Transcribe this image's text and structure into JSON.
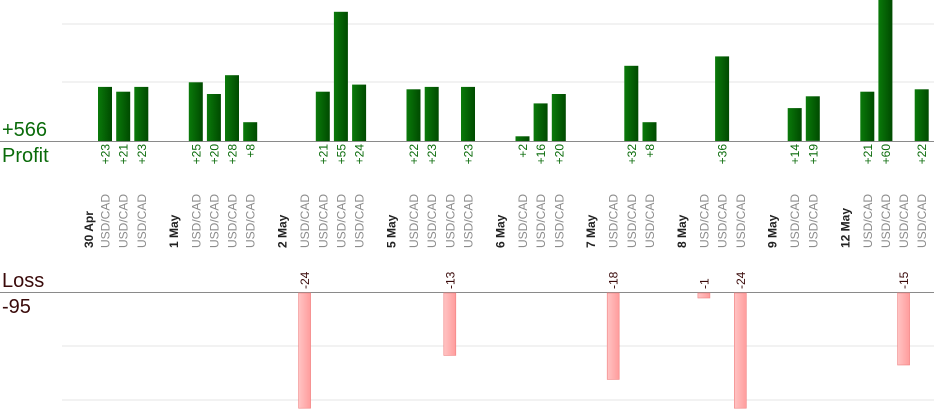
{
  "summary": {
    "profit_total": "+566",
    "profit_label": "Profit",
    "loss_label": "Loss",
    "loss_total": "-95"
  },
  "colors": {
    "profit_bar_dark": "#004a00",
    "profit_bar_light": "#0a7a0a",
    "profit_text": "#0a6b0a",
    "loss_bar": "#ffaaaa",
    "loss_bar_edge": "#f08080",
    "loss_text": "#3a0a0a",
    "date_text": "#222222",
    "symbol_text": "#8c8c8c",
    "grid": "#e6e6e6"
  },
  "chart_data": {
    "type": "bar",
    "title": "",
    "xlabel": "",
    "ylabel": "",
    "grid": true,
    "profit_scale_max": 60,
    "loss_scale_max": 24,
    "groups": [
      {
        "date": "30 Apr",
        "trades": [
          {
            "symbol": "USD/CAD",
            "value": 23,
            "label": "+23"
          },
          {
            "symbol": "USD/CAD",
            "value": 21,
            "label": "+21"
          },
          {
            "symbol": "USD/CAD",
            "value": 23,
            "label": "+23"
          }
        ]
      },
      {
        "date": "1 May",
        "trades": [
          {
            "symbol": "USD/CAD",
            "value": 25,
            "label": "+25"
          },
          {
            "symbol": "USD/CAD",
            "value": 20,
            "label": "+20"
          },
          {
            "symbol": "USD/CAD",
            "value": 28,
            "label": "+28"
          },
          {
            "symbol": "USD/CAD",
            "value": 8,
            "label": "+8"
          }
        ]
      },
      {
        "date": "2 May",
        "trades": [
          {
            "symbol": "USD/CAD",
            "value": -24,
            "label": "-24"
          },
          {
            "symbol": "USD/CAD",
            "value": 21,
            "label": "+21"
          },
          {
            "symbol": "USD/CAD",
            "value": 55,
            "label": "+55"
          },
          {
            "symbol": "USD/CAD",
            "value": 24,
            "label": "+24"
          }
        ]
      },
      {
        "date": "5 May",
        "trades": [
          {
            "symbol": "USD/CAD",
            "value": 22,
            "label": "+22"
          },
          {
            "symbol": "USD/CAD",
            "value": 23,
            "label": "+23"
          },
          {
            "symbol": "USD/CAD",
            "value": -13,
            "label": "-13"
          },
          {
            "symbol": "USD/CAD",
            "value": 23,
            "label": "+23"
          }
        ]
      },
      {
        "date": "6 May",
        "trades": [
          {
            "symbol": "USD/CAD",
            "value": 2,
            "label": "+2"
          },
          {
            "symbol": "USD/CAD",
            "value": 16,
            "label": "+16"
          },
          {
            "symbol": "USD/CAD",
            "value": 20,
            "label": "+20"
          }
        ]
      },
      {
        "date": "7 May",
        "trades": [
          {
            "symbol": "USD/CAD",
            "value": -18,
            "label": "-18"
          },
          {
            "symbol": "USD/CAD",
            "value": 32,
            "label": "+32"
          },
          {
            "symbol": "USD/CAD",
            "value": 8,
            "label": "+8"
          }
        ]
      },
      {
        "date": "8 May",
        "trades": [
          {
            "symbol": "USD/CAD",
            "value": -1,
            "label": "-1"
          },
          {
            "symbol": "USD/CAD",
            "value": 36,
            "label": "+36"
          },
          {
            "symbol": "USD/CAD",
            "value": -24,
            "label": "-24"
          }
        ]
      },
      {
        "date": "9 May",
        "trades": [
          {
            "symbol": "USD/CAD",
            "value": 14,
            "label": "+14"
          },
          {
            "symbol": "USD/CAD",
            "value": 19,
            "label": "+19"
          }
        ]
      },
      {
        "date": "12 May",
        "trades": [
          {
            "symbol": "USD/CAD",
            "value": 21,
            "label": "+21"
          },
          {
            "symbol": "USD/CAD",
            "value": 60,
            "label": "+60"
          },
          {
            "symbol": "USD/CAD",
            "value": -15,
            "label": "-15"
          },
          {
            "symbol": "USD/CAD",
            "value": 22,
            "label": "+22"
          }
        ]
      }
    ]
  }
}
